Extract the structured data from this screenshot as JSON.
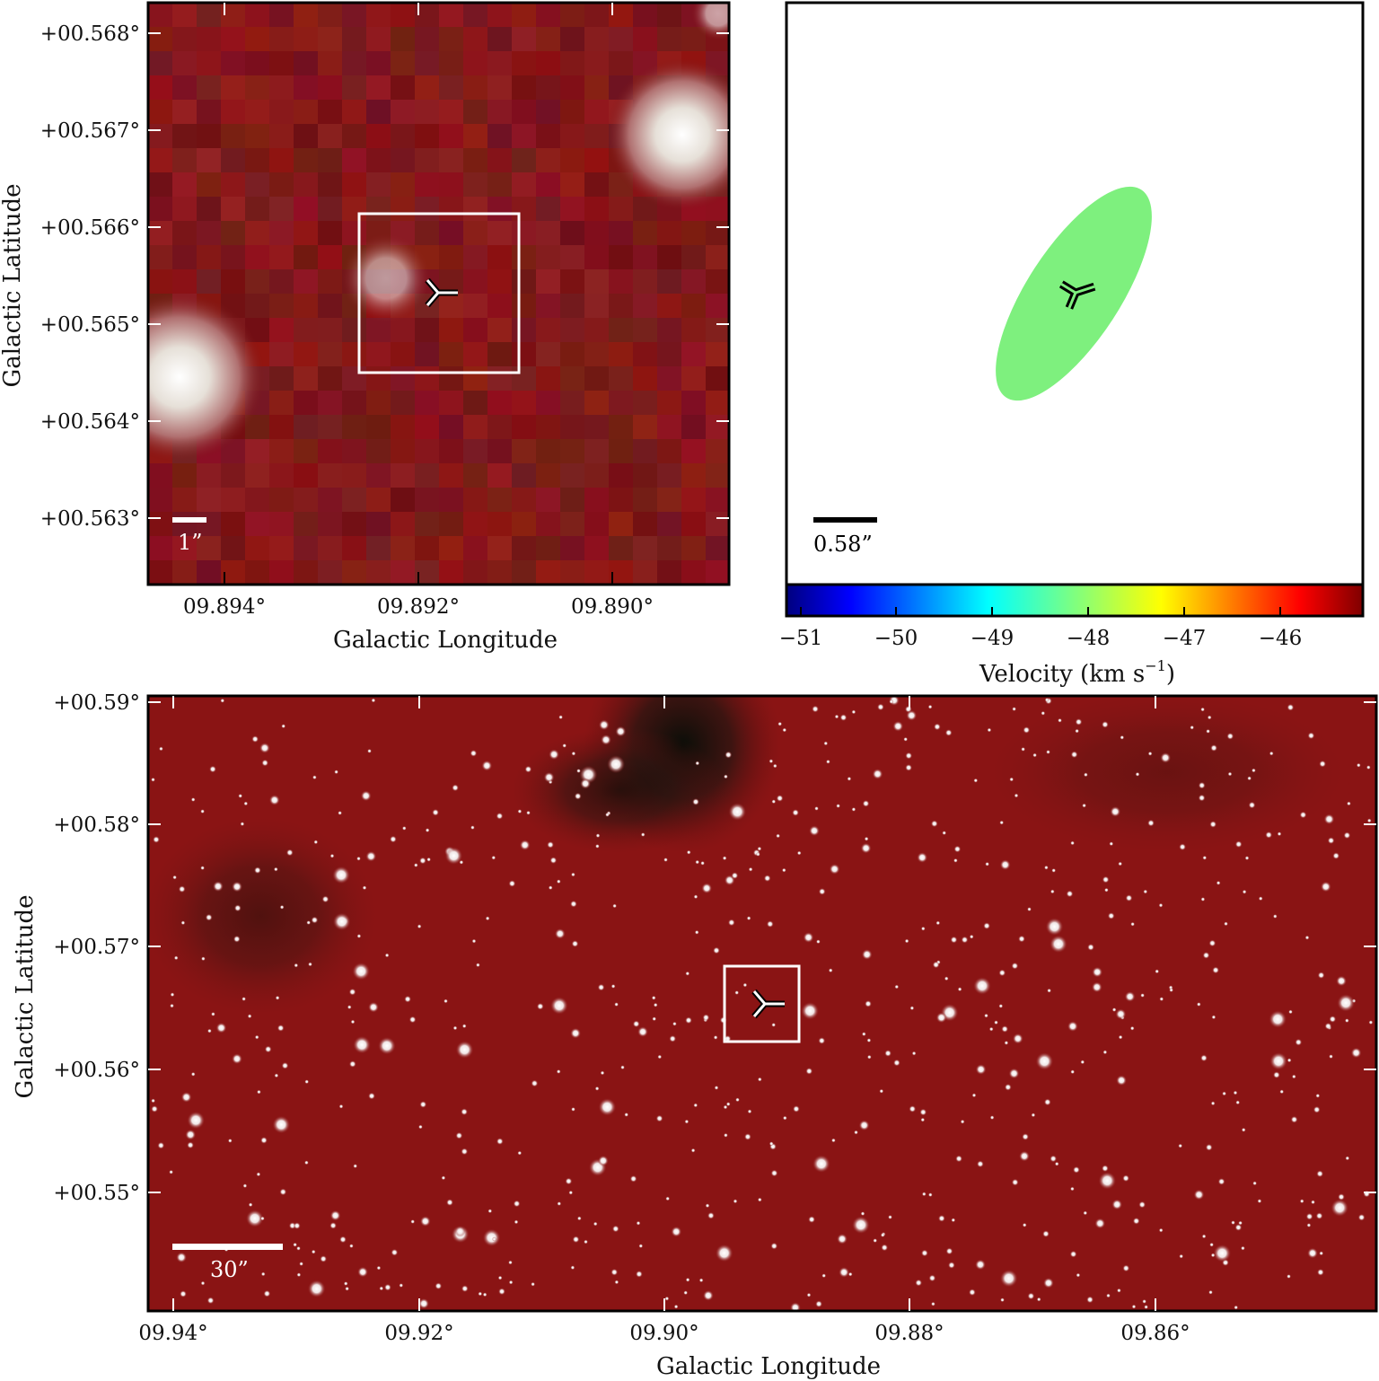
{
  "panels": {
    "zoom": {
      "xlabel": "Galactic Longitude",
      "ylabel": "Galactic Latitude",
      "xticks": [
        "09.894°",
        "09.892°",
        "09.890°"
      ],
      "yticks": [
        "+00.568°",
        "+00.567°",
        "+00.566°",
        "+00.565°",
        "+00.564°",
        "+00.563°"
      ],
      "scalebar_label": "1”",
      "marker": "tri-marker-icon",
      "bg_color": "#7e1414"
    },
    "velocity": {
      "scalebar_label": "0.58”",
      "colorbar_label": "Velocity (km s",
      "colorbar_unit_exp": "−1",
      "colorbar_label_close": ")",
      "colorbar_ticks": [
        "−51",
        "−50",
        "−49",
        "−48",
        "−47",
        "−46"
      ],
      "ellipse_color": "#7ef07e",
      "marker": "tri-marker-icon"
    },
    "wide": {
      "xlabel": "Galactic Longitude",
      "ylabel": "Galactic Latitude",
      "xticks": [
        "09.94°",
        "09.92°",
        "09.90°",
        "09.88°",
        "09.86°"
      ],
      "yticks": [
        "+00.59°",
        "+00.58°",
        "+00.57°",
        "+00.56°",
        "+00.55°"
      ],
      "scalebar_label": "30”",
      "marker": "tri-marker-icon",
      "bg_color": "#8a1414"
    }
  }
}
